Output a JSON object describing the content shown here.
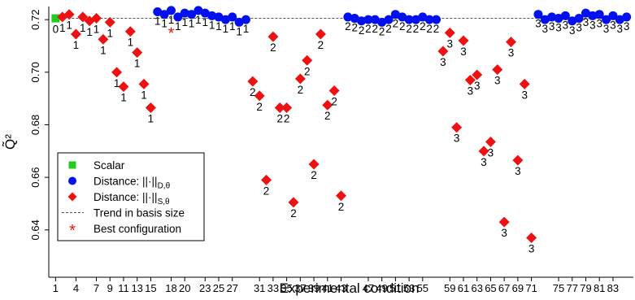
{
  "chart_data": {
    "type": "scatter",
    "title": "",
    "xlabel": "Experimental condition",
    "ylabel": "Q̃²",
    "xlim": [
      0,
      86
    ],
    "ylim": [
      0.622,
      0.725
    ],
    "grid": false,
    "xticks": [
      1,
      4,
      7,
      9,
      11,
      13,
      15,
      18,
      20,
      23,
      25,
      27,
      31,
      33,
      35,
      37,
      39,
      41,
      43,
      47,
      49,
      51,
      53,
      55,
      59,
      61,
      63,
      65,
      67,
      69,
      71,
      75,
      77,
      79,
      81,
      83
    ],
    "xtick_labels": [
      "1",
      "4",
      "7",
      "9",
      "11",
      "13",
      "15",
      "18",
      "20",
      "23",
      "25",
      "27",
      "31",
      "33",
      "35",
      "37",
      "39",
      "41",
      "43",
      "47",
      "49",
      "51",
      "53",
      "55",
      "59",
      "61",
      "63",
      "65",
      "67",
      "69",
      "71",
      "75",
      "77",
      "79",
      "81",
      "83"
    ],
    "yticks": [
      0.64,
      0.66,
      0.68,
      0.7,
      0.72
    ],
    "ytick_labels": [
      "0.64",
      "0.66",
      "0.68",
      "0.70",
      "0.72"
    ],
    "legend": {
      "placement": "bottom-left",
      "entries": [
        {
          "label": "Scalar",
          "marker": "square",
          "color": "#22cc22"
        },
        {
          "label": "Distance: ||·||D,θ",
          "marker": "circle",
          "color": "#0011ee",
          "main": "Distance: ||·||",
          "sub": "D,θ"
        },
        {
          "label": "Distance: ||·||S,θ",
          "marker": "diamond",
          "color": "#ee1111",
          "main": "Distance: ||·||",
          "sub": "S,θ"
        },
        {
          "label": "Trend in basis size",
          "marker": "dashed-line",
          "color": "#555555"
        },
        {
          "label": "Best configuration",
          "marker": "asterisk",
          "color": "#ee1111"
        }
      ]
    },
    "trend_line": {
      "x": [
        1,
        85
      ],
      "y": [
        0.7205,
        0.7205
      ]
    },
    "best_configuration": {
      "x": 18,
      "y": 0.7155
    },
    "series": [
      {
        "name": "Scalar",
        "marker": "square",
        "color": "#22cc22",
        "points": [
          {
            "x": 1,
            "y": 0.7205,
            "label": "0"
          }
        ]
      },
      {
        "name": "Distance: ||·||D,θ",
        "marker": "circle",
        "color": "#0011ee",
        "points": [
          {
            "x": 16,
            "y": 0.723,
            "label": "1"
          },
          {
            "x": 17,
            "y": 0.722,
            "label": "1"
          },
          {
            "x": 18,
            "y": 0.7235,
            "label": "1"
          },
          {
            "x": 19,
            "y": 0.721,
            "label": "1"
          },
          {
            "x": 20,
            "y": 0.7225,
            "label": "1"
          },
          {
            "x": 21,
            "y": 0.722,
            "label": "1"
          },
          {
            "x": 22,
            "y": 0.7235,
            "label": "1"
          },
          {
            "x": 23,
            "y": 0.7225,
            "label": "1"
          },
          {
            "x": 24,
            "y": 0.7215,
            "label": "1"
          },
          {
            "x": 25,
            "y": 0.721,
            "label": "1"
          },
          {
            "x": 26,
            "y": 0.72,
            "label": "1"
          },
          {
            "x": 27,
            "y": 0.721,
            "label": "1"
          },
          {
            "x": 28,
            "y": 0.719,
            "label": "1"
          },
          {
            "x": 29,
            "y": 0.72,
            "label": "1"
          },
          {
            "x": 44,
            "y": 0.721,
            "label": "2"
          },
          {
            "x": 45,
            "y": 0.7205,
            "label": "2"
          },
          {
            "x": 46,
            "y": 0.7195,
            "label": "2"
          },
          {
            "x": 47,
            "y": 0.72,
            "label": "2"
          },
          {
            "x": 48,
            "y": 0.72,
            "label": "2"
          },
          {
            "x": 49,
            "y": 0.719,
            "label": "2"
          },
          {
            "x": 50,
            "y": 0.72,
            "label": "2"
          },
          {
            "x": 51,
            "y": 0.722,
            "label": "2"
          },
          {
            "x": 52,
            "y": 0.721,
            "label": "2"
          },
          {
            "x": 53,
            "y": 0.72,
            "label": "2"
          },
          {
            "x": 54,
            "y": 0.72,
            "label": "2"
          },
          {
            "x": 55,
            "y": 0.721,
            "label": "2"
          },
          {
            "x": 56,
            "y": 0.72,
            "label": "2"
          },
          {
            "x": 57,
            "y": 0.72,
            "label": "2"
          },
          {
            "x": 72,
            "y": 0.722,
            "label": "3"
          },
          {
            "x": 73,
            "y": 0.72,
            "label": "3"
          },
          {
            "x": 74,
            "y": 0.721,
            "label": "3"
          },
          {
            "x": 75,
            "y": 0.7205,
            "label": "3"
          },
          {
            "x": 76,
            "y": 0.7215,
            "label": "3"
          },
          {
            "x": 77,
            "y": 0.7195,
            "label": "3"
          },
          {
            "x": 78,
            "y": 0.7205,
            "label": "3"
          },
          {
            "x": 79,
            "y": 0.7225,
            "label": "3"
          },
          {
            "x": 80,
            "y": 0.7215,
            "label": "3"
          },
          {
            "x": 81,
            "y": 0.722,
            "label": "3"
          },
          {
            "x": 82,
            "y": 0.72,
            "label": "3"
          },
          {
            "x": 83,
            "y": 0.7215,
            "label": "3"
          },
          {
            "x": 84,
            "y": 0.72,
            "label": "3"
          },
          {
            "x": 85,
            "y": 0.721,
            "label": "3"
          }
        ]
      },
      {
        "name": "Distance: ||·||S,θ",
        "marker": "diamond",
        "color": "#ee1111",
        "points": [
          {
            "x": 2,
            "y": 0.721,
            "label": "1"
          },
          {
            "x": 3,
            "y": 0.722,
            "label": "1"
          },
          {
            "x": 4,
            "y": 0.7145,
            "label": "1"
          },
          {
            "x": 5,
            "y": 0.721,
            "label": "1"
          },
          {
            "x": 6,
            "y": 0.7195,
            "label": "1"
          },
          {
            "x": 7,
            "y": 0.7205,
            "label": "1"
          },
          {
            "x": 8,
            "y": 0.7125,
            "label": "1"
          },
          {
            "x": 9,
            "y": 0.719,
            "label": "1"
          },
          {
            "x": 10,
            "y": 0.7,
            "label": "1"
          },
          {
            "x": 11,
            "y": 0.6945,
            "label": "1"
          },
          {
            "x": 12,
            "y": 0.7155,
            "label": "1"
          },
          {
            "x": 13,
            "y": 0.7075,
            "label": "1"
          },
          {
            "x": 14,
            "y": 0.6955,
            "label": "1"
          },
          {
            "x": 15,
            "y": 0.6865,
            "label": "1"
          },
          {
            "x": 30,
            "y": 0.6965,
            "label": "2"
          },
          {
            "x": 31,
            "y": 0.691,
            "label": "2"
          },
          {
            "x": 32,
            "y": 0.659,
            "label": "2"
          },
          {
            "x": 33,
            "y": 0.7135,
            "label": "2"
          },
          {
            "x": 34,
            "y": 0.6865,
            "label": "2"
          },
          {
            "x": 35,
            "y": 0.6865,
            "label": "2"
          },
          {
            "x": 36,
            "y": 0.6505,
            "label": "2"
          },
          {
            "x": 37,
            "y": 0.6975,
            "label": "2"
          },
          {
            "x": 38,
            "y": 0.7045,
            "label": "2"
          },
          {
            "x": 39,
            "y": 0.665,
            "label": "2"
          },
          {
            "x": 40,
            "y": 0.7145,
            "label": "2"
          },
          {
            "x": 41,
            "y": 0.6875,
            "label": "2"
          },
          {
            "x": 42,
            "y": 0.693,
            "label": "2"
          },
          {
            "x": 43,
            "y": 0.653,
            "label": "2"
          },
          {
            "x": 58,
            "y": 0.708,
            "label": "3"
          },
          {
            "x": 59,
            "y": 0.715,
            "label": "3"
          },
          {
            "x": 60,
            "y": 0.679,
            "label": "3"
          },
          {
            "x": 61,
            "y": 0.712,
            "label": "3"
          },
          {
            "x": 62,
            "y": 0.697,
            "label": "3"
          },
          {
            "x": 63,
            "y": 0.699,
            "label": "3"
          },
          {
            "x": 64,
            "y": 0.67,
            "label": "3"
          },
          {
            "x": 65,
            "y": 0.6735,
            "label": "3"
          },
          {
            "x": 66,
            "y": 0.701,
            "label": "3"
          },
          {
            "x": 67,
            "y": 0.643,
            "label": "3"
          },
          {
            "x": 68,
            "y": 0.7115,
            "label": "3"
          },
          {
            "x": 69,
            "y": 0.6665,
            "label": "3"
          },
          {
            "x": 70,
            "y": 0.6955,
            "label": "3"
          },
          {
            "x": 71,
            "y": 0.637,
            "label": "3"
          }
        ]
      }
    ]
  }
}
